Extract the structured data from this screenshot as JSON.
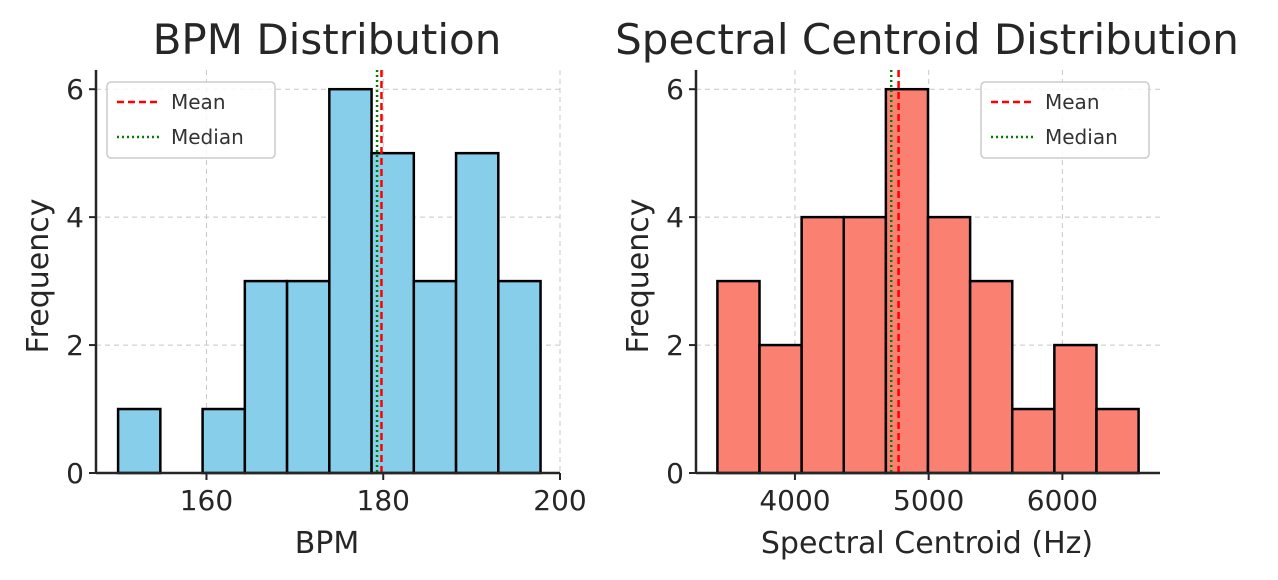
{
  "chart_data": [
    {
      "type": "bar",
      "title": "BPM Distribution",
      "xlabel": "BPM",
      "ylabel": "Frequency",
      "bin_edges": [
        150,
        154.78,
        159.56,
        164.34,
        169.12,
        173.9,
        178.68,
        183.46,
        188.24,
        193.02,
        197.8
      ],
      "values": [
        1,
        0,
        1,
        3,
        3,
        6,
        5,
        3,
        5,
        3
      ],
      "xlim": [
        147.5,
        200
      ],
      "ylim": [
        0,
        6.3
      ],
      "xticks": [
        160,
        180,
        200
      ],
      "xtick_labels": [
        "160",
        "180",
        "200"
      ],
      "yticks": [
        0,
        2,
        4,
        6
      ],
      "ytick_labels": [
        "0",
        "2",
        "4",
        "6"
      ],
      "mean": 179.8,
      "median": 179.3,
      "bar_color": "#87ceeb",
      "grid": true,
      "legend_position": "top-left",
      "legend": [
        {
          "label": "Mean",
          "color": "#ff0000",
          "style": "dashed"
        },
        {
          "label": "Median",
          "color": "#008000",
          "style": "dotted"
        }
      ]
    },
    {
      "type": "bar",
      "title": "Spectral Centroid Distribution",
      "xlabel": "Spectral Centroid (Hz)",
      "ylabel": "Frequency",
      "bin_edges": [
        3420,
        3735,
        4050,
        4365,
        4680,
        4995,
        5310,
        5625,
        5940,
        6255,
        6570
      ],
      "values": [
        3,
        2,
        4,
        4,
        6,
        4,
        3,
        1,
        2,
        1
      ],
      "xlim": [
        3260,
        6730
      ],
      "ylim": [
        0,
        6.3
      ],
      "xticks": [
        4000,
        5000,
        6000
      ],
      "xtick_labels": [
        "4000",
        "5000",
        "6000"
      ],
      "yticks": [
        0,
        2,
        4,
        6
      ],
      "ytick_labels": [
        "0",
        "2",
        "4",
        "6"
      ],
      "mean": 4775,
      "median": 4720,
      "bar_color": "#fa8072",
      "grid": true,
      "legend_position": "top-right",
      "legend": [
        {
          "label": "Mean",
          "color": "#ff0000",
          "style": "dashed"
        },
        {
          "label": "Median",
          "color": "#008000",
          "style": "dotted"
        }
      ]
    }
  ]
}
